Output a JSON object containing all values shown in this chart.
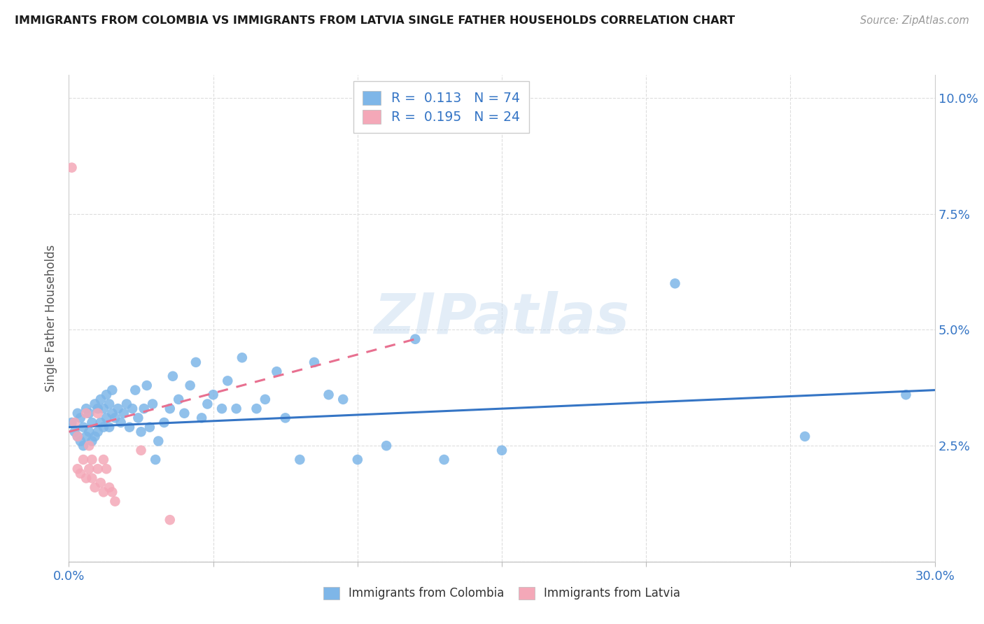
{
  "title": "IMMIGRANTS FROM COLOMBIA VS IMMIGRANTS FROM LATVIA SINGLE FATHER HOUSEHOLDS CORRELATION CHART",
  "source": "Source: ZipAtlas.com",
  "ylabel": "Single Father Households",
  "xlim": [
    0.0,
    0.3
  ],
  "ylim": [
    0.0,
    0.105
  ],
  "xticks": [
    0.0,
    0.05,
    0.1,
    0.15,
    0.2,
    0.25,
    0.3
  ],
  "xticklabels": [
    "0.0%",
    "",
    "",
    "",
    "",
    "",
    "30.0%"
  ],
  "yticks_left": [
    0.0,
    0.025,
    0.05,
    0.075,
    0.1
  ],
  "yticklabels_left": [
    "",
    "",
    "",
    "",
    ""
  ],
  "yticks_right": [
    0.0,
    0.025,
    0.05,
    0.075,
    0.1
  ],
  "yticklabels_right": [
    "",
    "2.5%",
    "5.0%",
    "7.5%",
    "10.0%"
  ],
  "colombia_color": "#7EB6E8",
  "latvia_color": "#F4A8B8",
  "legend_label_colombia": "R =  0.113   N = 74",
  "legend_label_latvia": "R =  0.195   N = 24",
  "watermark": "ZIPatlas",
  "colombia_scatter_x": [
    0.001,
    0.002,
    0.003,
    0.003,
    0.004,
    0.004,
    0.005,
    0.005,
    0.006,
    0.006,
    0.007,
    0.007,
    0.008,
    0.008,
    0.009,
    0.009,
    0.01,
    0.01,
    0.011,
    0.011,
    0.012,
    0.012,
    0.013,
    0.013,
    0.014,
    0.014,
    0.015,
    0.015,
    0.016,
    0.017,
    0.018,
    0.019,
    0.02,
    0.021,
    0.022,
    0.023,
    0.024,
    0.025,
    0.026,
    0.027,
    0.028,
    0.029,
    0.03,
    0.031,
    0.033,
    0.035,
    0.036,
    0.038,
    0.04,
    0.042,
    0.044,
    0.046,
    0.048,
    0.05,
    0.053,
    0.055,
    0.058,
    0.06,
    0.065,
    0.068,
    0.072,
    0.075,
    0.08,
    0.085,
    0.09,
    0.095,
    0.1,
    0.11,
    0.12,
    0.13,
    0.15,
    0.21,
    0.255,
    0.29
  ],
  "colombia_scatter_y": [
    0.03,
    0.028,
    0.027,
    0.032,
    0.026,
    0.031,
    0.025,
    0.029,
    0.027,
    0.033,
    0.028,
    0.032,
    0.026,
    0.03,
    0.027,
    0.034,
    0.028,
    0.033,
    0.03,
    0.035,
    0.029,
    0.033,
    0.031,
    0.036,
    0.029,
    0.034,
    0.032,
    0.037,
    0.031,
    0.033,
    0.03,
    0.032,
    0.034,
    0.029,
    0.033,
    0.037,
    0.031,
    0.028,
    0.033,
    0.038,
    0.029,
    0.034,
    0.022,
    0.026,
    0.03,
    0.033,
    0.04,
    0.035,
    0.032,
    0.038,
    0.043,
    0.031,
    0.034,
    0.036,
    0.033,
    0.039,
    0.033,
    0.044,
    0.033,
    0.035,
    0.041,
    0.031,
    0.022,
    0.043,
    0.036,
    0.035,
    0.022,
    0.025,
    0.048,
    0.022,
    0.024,
    0.06,
    0.027,
    0.036
  ],
  "latvia_scatter_x": [
    0.001,
    0.002,
    0.003,
    0.003,
    0.004,
    0.005,
    0.006,
    0.006,
    0.007,
    0.007,
    0.008,
    0.008,
    0.009,
    0.01,
    0.01,
    0.011,
    0.012,
    0.012,
    0.013,
    0.014,
    0.015,
    0.016,
    0.025,
    0.035
  ],
  "latvia_scatter_y": [
    0.085,
    0.03,
    0.027,
    0.02,
    0.019,
    0.022,
    0.018,
    0.032,
    0.02,
    0.025,
    0.018,
    0.022,
    0.016,
    0.02,
    0.032,
    0.017,
    0.015,
    0.022,
    0.02,
    0.016,
    0.015,
    0.013,
    0.024,
    0.009
  ],
  "colombia_trendline_x": [
    0.0,
    0.3
  ],
  "colombia_trendline_y": [
    0.029,
    0.037
  ],
  "latvia_trendline_x": [
    0.0,
    0.12
  ],
  "latvia_trendline_y": [
    0.028,
    0.048
  ],
  "bottom_legend_labels": [
    "Immigrants from Colombia",
    "Immigrants from Latvia"
  ]
}
